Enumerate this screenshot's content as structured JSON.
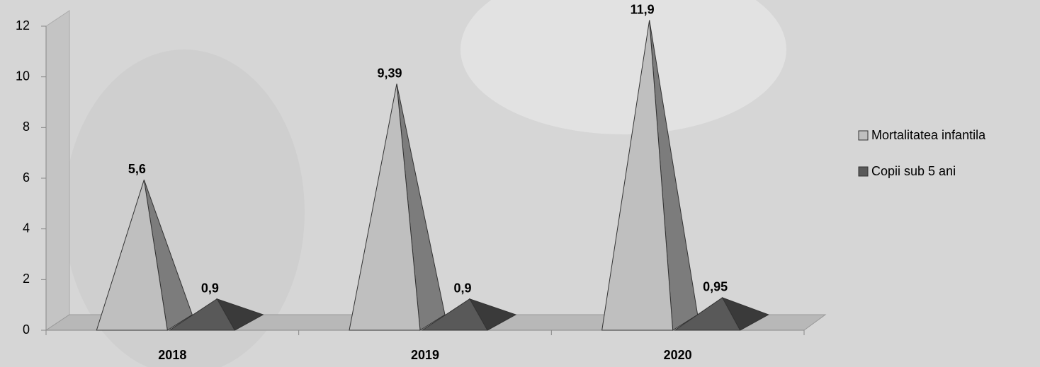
{
  "chart_data": {
    "type": "pyramid3d",
    "categories": [
      "2018",
      "2019",
      "2020"
    ],
    "series": [
      {
        "name": "Mortalitatea infantila",
        "color": "#bfbfbf",
        "values": [
          5.6,
          9.39,
          11.9
        ],
        "value_labels": [
          "5,6",
          "9,39",
          "11,9"
        ]
      },
      {
        "name": "Copii sub 5 ani",
        "color": "#595959",
        "values": [
          0.9,
          0.9,
          0.95
        ],
        "value_labels": [
          "0,9",
          "0,9",
          "0,95"
        ]
      }
    ],
    "ylim": [
      0,
      12
    ],
    "yticks": [
      0,
      2,
      4,
      6,
      8,
      10,
      12
    ],
    "legend": "right"
  }
}
